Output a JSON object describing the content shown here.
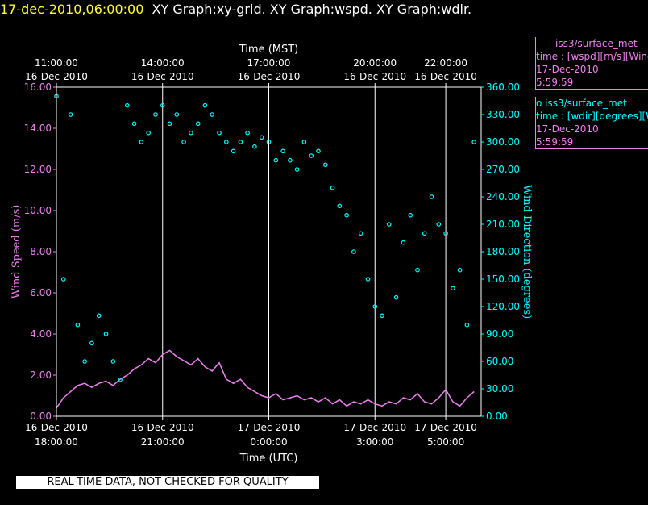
{
  "header": {
    "timestamp": "17-dec-2010,06:00:00",
    "graphs": "XY Graph:xy-grid.  XY Graph:wspd.  XY Graph:wdir."
  },
  "legend": {
    "wspd": {
      "line1": "——iss3/surface_met",
      "line2": "time : [wspd][m/s][Wind Speed]",
      "line3": "17-Dec-2010",
      "line4": "5:59:59"
    },
    "wdir": {
      "line1": "o  iss3/surface_met",
      "line2": "time : [wdir][degrees][Wind Direction]",
      "line3": "17-Dec-2010",
      "line4": "5:59:59"
    }
  },
  "footer": {
    "qc_notice": "REAL-TIME DATA, NOT CHECKED FOR QUALITY"
  },
  "colors": {
    "wspd": "#ee82ee",
    "wdir": "#00ffff",
    "timestamp": "#ffff33"
  },
  "chart_data": {
    "type": "line",
    "x_range_hours_utc": [
      18.0,
      30.0
    ],
    "top_axis": {
      "title": "Time (MST)",
      "ticks": [
        {
          "x": 18.0,
          "time": "11:00:00",
          "date": "16-Dec-2010"
        },
        {
          "x": 21.0,
          "time": "14:00:00",
          "date": "16-Dec-2010"
        },
        {
          "x": 24.0,
          "time": "17:00:00",
          "date": "16-Dec-2010"
        },
        {
          "x": 27.0,
          "time": "20:00:00",
          "date": "16-Dec-2010"
        },
        {
          "x": 29.0,
          "time": "22:00:00",
          "date": "16-Dec-2010"
        }
      ]
    },
    "bottom_axis": {
      "title": "Time (UTC)",
      "ticks": [
        {
          "x": 18.0,
          "date": "16-Dec-2010",
          "time": "18:00:00"
        },
        {
          "x": 21.0,
          "date": "16-Dec-2010",
          "time": "21:00:00"
        },
        {
          "x": 24.0,
          "date": "17-Dec-2010",
          "time": "0:00:00"
        },
        {
          "x": 27.0,
          "date": "17-Dec-2010",
          "time": "3:00:00"
        },
        {
          "x": 29.0,
          "date": "17-Dec-2010",
          "time": "5:00:00"
        }
      ]
    },
    "vertical_grid_at": [
      21.0,
      24.0,
      27.0,
      29.0
    ],
    "left_axis": {
      "label": "Wind Speed (m/s)",
      "range": [
        0,
        16
      ],
      "ticks": [
        "0.00",
        "2.00",
        "4.00",
        "6.00",
        "8.00",
        "10.00",
        "12.00",
        "14.00",
        "16.00"
      ]
    },
    "right_axis": {
      "label": "Wind Direction (degrees)",
      "range": [
        0,
        360
      ],
      "ticks": [
        "0.00",
        "30.00",
        "60.00",
        "90.00",
        "120.00",
        "150.00",
        "180.00",
        "210.00",
        "240.00",
        "270.00",
        "300.00",
        "330.00",
        "360.00"
      ]
    },
    "series": [
      {
        "name": "iss3/surface_met wspd",
        "axis": "left",
        "style": "line",
        "x": [
          18.0,
          18.2,
          18.4,
          18.6,
          18.8,
          19.0,
          19.2,
          19.4,
          19.6,
          19.8,
          20.0,
          20.2,
          20.4,
          20.6,
          20.8,
          21.0,
          21.2,
          21.4,
          21.6,
          21.8,
          22.0,
          22.2,
          22.4,
          22.6,
          22.8,
          23.0,
          23.2,
          23.4,
          23.6,
          23.8,
          24.0,
          24.2,
          24.4,
          24.6,
          24.8,
          25.0,
          25.2,
          25.4,
          25.6,
          25.8,
          26.0,
          26.2,
          26.4,
          26.6,
          26.8,
          27.0,
          27.2,
          27.4,
          27.6,
          27.8,
          28.0,
          28.2,
          28.4,
          28.6,
          28.8,
          29.0,
          29.2,
          29.4,
          29.6,
          29.8
        ],
        "y": [
          0.4,
          0.9,
          1.2,
          1.5,
          1.6,
          1.4,
          1.6,
          1.7,
          1.5,
          1.8,
          2.0,
          2.3,
          2.5,
          2.8,
          2.6,
          3.0,
          3.2,
          2.9,
          2.7,
          2.5,
          2.8,
          2.4,
          2.2,
          2.6,
          1.8,
          1.6,
          1.8,
          1.4,
          1.2,
          1.0,
          0.9,
          1.1,
          0.8,
          0.9,
          1.0,
          0.8,
          0.9,
          0.7,
          0.9,
          0.6,
          0.8,
          0.5,
          0.7,
          0.6,
          0.8,
          0.6,
          0.5,
          0.7,
          0.6,
          0.9,
          0.8,
          1.1,
          0.7,
          0.6,
          0.9,
          1.3,
          0.7,
          0.5,
          0.9,
          1.2
        ]
      },
      {
        "name": "iss3/surface_met wdir",
        "axis": "right",
        "style": "markers",
        "x": [
          18.0,
          18.2,
          18.4,
          18.6,
          18.8,
          19.0,
          19.2,
          19.4,
          19.6,
          19.8,
          20.0,
          20.2,
          20.4,
          20.6,
          20.8,
          21.0,
          21.2,
          21.4,
          21.6,
          21.8,
          22.0,
          22.2,
          22.4,
          22.6,
          22.8,
          23.0,
          23.2,
          23.4,
          23.6,
          23.8,
          24.0,
          24.2,
          24.4,
          24.6,
          24.8,
          25.0,
          25.2,
          25.4,
          25.6,
          25.8,
          26.0,
          26.2,
          26.4,
          26.6,
          26.8,
          27.0,
          27.2,
          27.4,
          27.6,
          27.8,
          28.0,
          28.2,
          28.4,
          28.6,
          28.8,
          29.0,
          29.2,
          29.4,
          29.6,
          29.8
        ],
        "y": [
          350,
          150,
          330,
          100,
          60,
          80,
          110,
          90,
          60,
          40,
          340,
          320,
          300,
          310,
          330,
          340,
          320,
          330,
          300,
          310,
          320,
          340,
          330,
          310,
          300,
          290,
          300,
          310,
          295,
          305,
          300,
          280,
          290,
          280,
          270,
          300,
          285,
          290,
          275,
          250,
          230,
          220,
          180,
          200,
          150,
          120,
          110,
          210,
          130,
          190,
          220,
          160,
          200,
          240,
          210,
          200,
          140,
          160,
          100,
          300
        ]
      }
    ]
  }
}
